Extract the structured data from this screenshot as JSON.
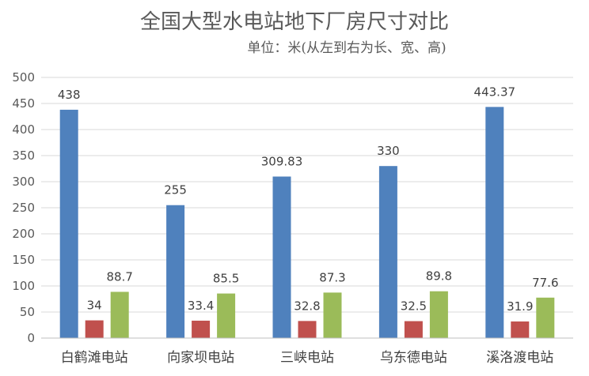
{
  "chart_data": {
    "type": "bar",
    "title": "全国大型水电站地下厂房尺寸对比",
    "subtitle": "单位：米(从左到右为长、宽、高)",
    "categories": [
      "白鹤滩电站",
      "向家坝电站",
      "三峡电站",
      "乌东德电站",
      "溪洛渡电站"
    ],
    "series": [
      {
        "values": [
          438,
          255,
          309.83,
          330,
          443.37
        ],
        "labels": [
          "438",
          "255",
          "309.83",
          "330",
          "443.37"
        ],
        "color": "#4f81bd"
      },
      {
        "values": [
          34,
          33.4,
          32.8,
          32.5,
          31.9
        ],
        "labels": [
          "34",
          "33.4",
          "32.8",
          "32.5",
          "31.9"
        ],
        "color": "#c0504d"
      },
      {
        "values": [
          88.7,
          85.5,
          87.3,
          89.8,
          77.6
        ],
        "labels": [
          "88.7",
          "85.5",
          "87.3",
          "89.8",
          "77.6"
        ],
        "color": "#9bbb59"
      }
    ],
    "ylim": [
      0,
      500
    ],
    "yticks": [
      0,
      50,
      100,
      150,
      200,
      250,
      300,
      350,
      400,
      450,
      500
    ],
    "grid": true,
    "legend": "none"
  }
}
